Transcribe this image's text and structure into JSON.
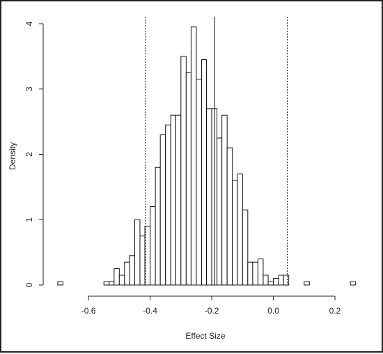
{
  "chart_data": {
    "type": "bar",
    "xlabel": "Effect Size",
    "ylabel": "Density",
    "xlim": [
      -0.72,
      0.27
    ],
    "ylim": [
      0,
      4
    ],
    "x_ticks": [
      -0.6,
      -0.4,
      -0.2,
      0.0,
      0.2
    ],
    "x_tick_labels": [
      "-0.6",
      "-0.4",
      "-0.2",
      "0.0",
      "0.2"
    ],
    "y_ticks": [
      0,
      1,
      2,
      3,
      4
    ],
    "y_tick_labels": [
      "0",
      "1",
      "2",
      "3",
      "4"
    ],
    "bin_width": 0.0167,
    "bins": [
      {
        "x0": -0.7,
        "x1": -0.683,
        "density": 0.05
      },
      {
        "x0": -0.55,
        "x1": -0.533,
        "density": 0.05
      },
      {
        "x0": -0.533,
        "x1": -0.517,
        "density": 0.05
      },
      {
        "x0": -0.517,
        "x1": -0.5,
        "density": 0.25
      },
      {
        "x0": -0.5,
        "x1": -0.483,
        "density": 0.15
      },
      {
        "x0": -0.483,
        "x1": -0.467,
        "density": 0.35
      },
      {
        "x0": -0.467,
        "x1": -0.45,
        "density": 0.45
      },
      {
        "x0": -0.45,
        "x1": -0.433,
        "density": 1.0
      },
      {
        "x0": -0.433,
        "x1": -0.417,
        "density": 0.75
      },
      {
        "x0": -0.417,
        "x1": -0.4,
        "density": 0.9
      },
      {
        "x0": -0.4,
        "x1": -0.383,
        "density": 1.2
      },
      {
        "x0": -0.383,
        "x1": -0.367,
        "density": 1.8
      },
      {
        "x0": -0.367,
        "x1": -0.35,
        "density": 2.3
      },
      {
        "x0": -0.35,
        "x1": -0.333,
        "density": 2.45
      },
      {
        "x0": -0.333,
        "x1": -0.317,
        "density": 2.6
      },
      {
        "x0": -0.317,
        "x1": -0.3,
        "density": 2.6
      },
      {
        "x0": -0.3,
        "x1": -0.283,
        "density": 3.5
      },
      {
        "x0": -0.283,
        "x1": -0.267,
        "density": 3.25
      },
      {
        "x0": -0.267,
        "x1": -0.25,
        "density": 3.95
      },
      {
        "x0": -0.25,
        "x1": -0.233,
        "density": 3.15
      },
      {
        "x0": -0.233,
        "x1": -0.217,
        "density": 3.45
      },
      {
        "x0": -0.217,
        "x1": -0.2,
        "density": 2.7
      },
      {
        "x0": -0.2,
        "x1": -0.183,
        "density": 2.7
      },
      {
        "x0": -0.183,
        "x1": -0.167,
        "density": 2.25
      },
      {
        "x0": -0.167,
        "x1": -0.15,
        "density": 2.6
      },
      {
        "x0": -0.15,
        "x1": -0.133,
        "density": 2.1
      },
      {
        "x0": -0.133,
        "x1": -0.117,
        "density": 1.6
      },
      {
        "x0": -0.117,
        "x1": -0.1,
        "density": 1.7
      },
      {
        "x0": -0.1,
        "x1": -0.083,
        "density": 1.15
      },
      {
        "x0": -0.083,
        "x1": -0.067,
        "density": 0.35
      },
      {
        "x0": -0.067,
        "x1": -0.05,
        "density": 0.35
      },
      {
        "x0": -0.05,
        "x1": -0.033,
        "density": 0.4
      },
      {
        "x0": -0.033,
        "x1": -0.017,
        "density": 0.15
      },
      {
        "x0": -0.017,
        "x1": 0.0,
        "density": 0.05
      },
      {
        "x0": 0.0,
        "x1": 0.017,
        "density": 0.1
      },
      {
        "x0": 0.017,
        "x1": 0.033,
        "density": 0.15
      },
      {
        "x0": 0.033,
        "x1": 0.05,
        "density": 0.15
      },
      {
        "x0": 0.1,
        "x1": 0.117,
        "density": 0.05
      },
      {
        "x0": 0.25,
        "x1": 0.267,
        "density": 0.05
      }
    ],
    "vertical_lines": [
      {
        "x": -0.415,
        "style": "dotted"
      },
      {
        "x": -0.19,
        "style": "solid"
      },
      {
        "x": 0.045,
        "style": "dotted"
      }
    ],
    "grid": false
  }
}
